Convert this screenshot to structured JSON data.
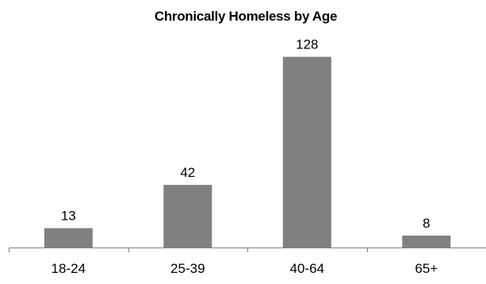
{
  "chart_data": {
    "type": "bar",
    "title": "Chronically Homeless by Age",
    "xlabel": "",
    "ylabel": "",
    "categories": [
      "18-24",
      "25-39",
      "40-64",
      "65+"
    ],
    "values": [
      13,
      42,
      128,
      8
    ],
    "data_labels": [
      "13",
      "42",
      "128",
      "8"
    ],
    "ylim": [
      0,
      140
    ],
    "grid": false,
    "legend": "none",
    "bar_color": "#808080",
    "axis_color": "#7f7f7f"
  }
}
